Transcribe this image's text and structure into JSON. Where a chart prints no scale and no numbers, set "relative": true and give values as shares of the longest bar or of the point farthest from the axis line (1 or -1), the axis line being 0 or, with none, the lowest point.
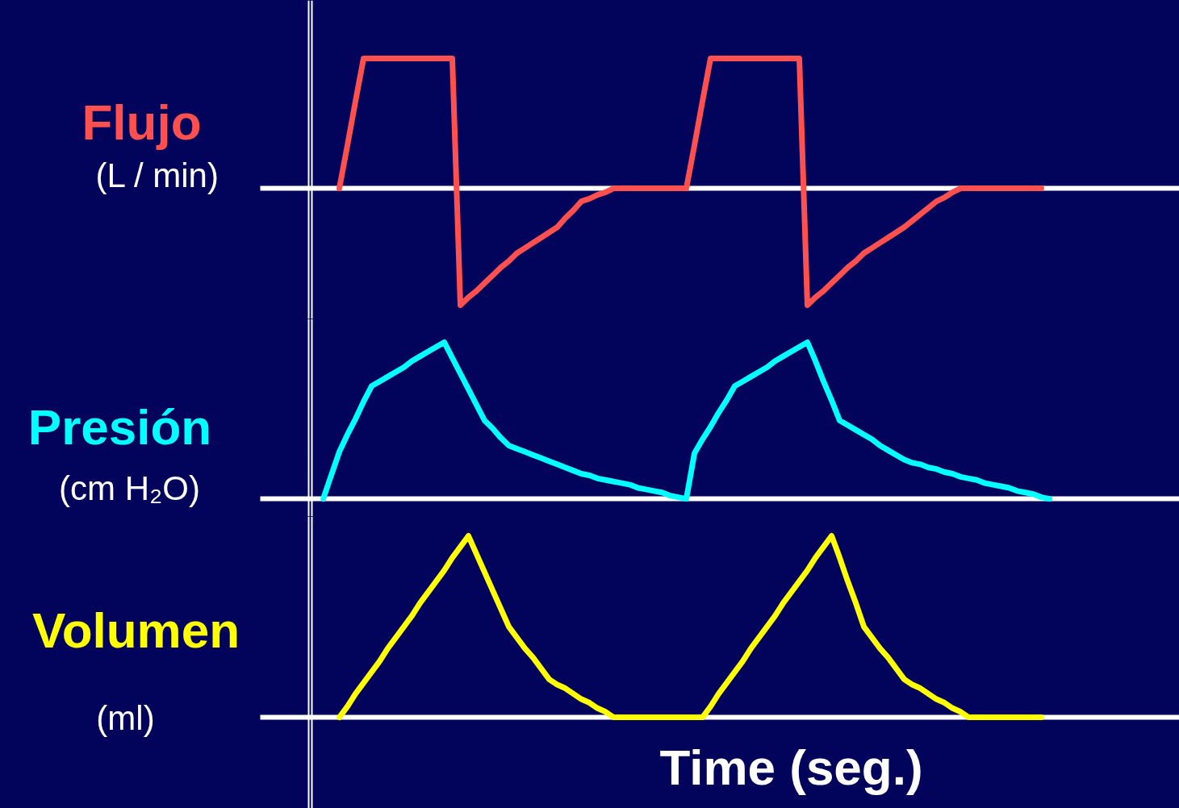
{
  "chart_data": [
    {
      "type": "line",
      "relative": true,
      "title": "Flujo",
      "subtitle": "(L / min)",
      "categories": [
        null,
        null,
        null,
        null,
        null,
        null,
        null,
        null,
        null,
        null,
        null,
        null,
        null,
        null,
        null,
        null,
        null,
        null,
        null,
        null,
        null,
        null,
        null,
        null,
        null,
        null,
        null,
        null,
        null,
        null,
        null,
        null,
        null,
        null,
        null,
        null,
        null,
        null,
        null,
        null,
        null,
        null,
        null,
        null,
        null,
        null,
        null,
        null,
        null,
        null,
        null,
        null,
        null,
        null,
        null,
        null,
        null,
        null,
        null,
        null,
        null,
        null,
        null,
        null,
        null,
        null,
        null,
        null,
        null,
        null,
        null,
        null,
        null,
        null,
        null,
        null,
        null,
        null,
        null,
        null,
        null,
        null,
        null,
        null,
        null,
        null,
        null,
        null,
        null,
        null,
        null
      ],
      "series": [
        {
          "color": "#ff5050",
          "values": [
            null,
            null,
            0,
            0.33,
            0.67,
            1,
            1,
            1,
            1,
            1,
            1,
            1,
            1,
            1,
            1,
            1,
            1,
            -0.9,
            -0.84,
            -0.79,
            -0.73,
            -0.67,
            -0.61,
            -0.56,
            -0.5,
            -0.46,
            -0.42,
            -0.38,
            -0.34,
            -0.3,
            -0.23,
            -0.17,
            -0.1,
            -0.08,
            -0.05,
            -0.03,
            0,
            0,
            0,
            0,
            0,
            0,
            0,
            0,
            0,
            0,
            0.33,
            0.67,
            1,
            1,
            1,
            1,
            1,
            1,
            1,
            1,
            1,
            1,
            1,
            1,
            -0.9,
            -0.84,
            -0.79,
            -0.73,
            -0.67,
            -0.61,
            -0.56,
            -0.5,
            -0.46,
            -0.42,
            -0.38,
            -0.34,
            -0.3,
            -0.25,
            -0.2,
            -0.15,
            -0.1,
            -0.07,
            -0.03,
            0,
            0,
            0,
            0,
            0,
            0,
            0,
            0,
            0,
            0,
            0,
            null
          ]
        }
      ]
    },
    {
      "type": "line",
      "relative": true,
      "title": "Presión",
      "subtitle": "(cm H₂O)",
      "categories": [
        null,
        null,
        null,
        null,
        null,
        null,
        null,
        null,
        null,
        null,
        null,
        null,
        null,
        null,
        null,
        null,
        null,
        null,
        null,
        null,
        null,
        null,
        null,
        null,
        null,
        null,
        null,
        null,
        null,
        null,
        null,
        null,
        null,
        null,
        null,
        null,
        null,
        null,
        null,
        null,
        null,
        null,
        null,
        null,
        null,
        null,
        null,
        null,
        null,
        null,
        null,
        null,
        null,
        null,
        null,
        null,
        null,
        null,
        null,
        null,
        null,
        null,
        null,
        null,
        null,
        null,
        null,
        null,
        null,
        null,
        null,
        null,
        null,
        null,
        null,
        null,
        null,
        null,
        null,
        null,
        null,
        null,
        null,
        null,
        null,
        null,
        null,
        null,
        null,
        null,
        null
      ],
      "series": [
        {
          "color": "#00ffff",
          "values": [
            0,
            0.15,
            0.3,
            0.41,
            0.51,
            0.62,
            0.72,
            0.75,
            0.78,
            0.81,
            0.84,
            0.88,
            0.91,
            0.94,
            0.97,
            1,
            0.9,
            0.8,
            0.7,
            0.6,
            0.5,
            0.45,
            0.39,
            0.34,
            0.32,
            0.3,
            0.28,
            0.26,
            0.24,
            0.22,
            0.2,
            0.18,
            0.16,
            0.15,
            0.13,
            0.12,
            0.11,
            0.1,
            0.09,
            0.07,
            0.06,
            0.05,
            0.04,
            0.02,
            0.01,
            0,
            0.29,
            0.38,
            0.46,
            0.55,
            0.63,
            0.72,
            0.75,
            0.78,
            0.81,
            0.84,
            0.88,
            0.91,
            0.94,
            0.97,
            1,
            0.88,
            0.75,
            0.63,
            0.5,
            0.47,
            0.44,
            0.41,
            0.38,
            0.34,
            0.31,
            0.28,
            0.25,
            0.23,
            0.22,
            0.2,
            0.19,
            0.17,
            0.16,
            0.14,
            0.13,
            0.12,
            0.1,
            0.09,
            0.08,
            0.07,
            0.05,
            0.04,
            0.03,
            0.01,
            0
          ]
        }
      ]
    },
    {
      "type": "line",
      "relative": true,
      "title": "Volumen",
      "subtitle": "(ml)",
      "xlabel": "Time (seg.)",
      "categories": [
        null,
        null,
        null,
        null,
        null,
        null,
        null,
        null,
        null,
        null,
        null,
        null,
        null,
        null,
        null,
        null,
        null,
        null,
        null,
        null,
        null,
        null,
        null,
        null,
        null,
        null,
        null,
        null,
        null,
        null,
        null,
        null,
        null,
        null,
        null,
        null,
        null,
        null,
        null,
        null,
        null,
        null,
        null,
        null,
        null,
        null,
        null,
        null,
        null,
        null,
        null,
        null,
        null,
        null,
        null,
        null,
        null,
        null,
        null,
        null,
        null,
        null,
        null,
        null,
        null,
        null,
        null,
        null,
        null,
        null,
        null,
        null,
        null,
        null,
        null,
        null,
        null,
        null,
        null,
        null,
        null,
        null,
        null,
        null,
        null,
        null,
        null,
        null,
        null,
        null,
        null
      ],
      "series": [
        {
          "color": "#ffff00",
          "values": [
            null,
            null,
            0,
            0.06,
            0.13,
            0.19,
            0.25,
            0.31,
            0.38,
            0.44,
            0.5,
            0.56,
            0.63,
            0.69,
            0.75,
            0.81,
            0.88,
            0.94,
            1,
            0.9,
            0.8,
            0.7,
            0.6,
            0.5,
            0.44,
            0.38,
            0.33,
            0.27,
            0.21,
            0.18,
            0.16,
            0.13,
            0.1,
            0.08,
            0.05,
            0.03,
            0,
            0,
            0,
            0,
            0,
            0,
            0,
            0,
            0,
            0,
            0,
            0,
            0.06,
            0.13,
            0.19,
            0.25,
            0.31,
            0.38,
            0.44,
            0.5,
            0.56,
            0.63,
            0.69,
            0.75,
            0.81,
            0.88,
            0.94,
            1,
            0.88,
            0.75,
            0.63,
            0.5,
            0.44,
            0.38,
            0.33,
            0.27,
            0.21,
            0.18,
            0.16,
            0.13,
            0.1,
            0.08,
            0.05,
            0.03,
            0,
            0,
            0,
            0,
            0,
            0,
            0,
            0,
            0,
            0,
            null
          ]
        }
      ]
    }
  ]
}
